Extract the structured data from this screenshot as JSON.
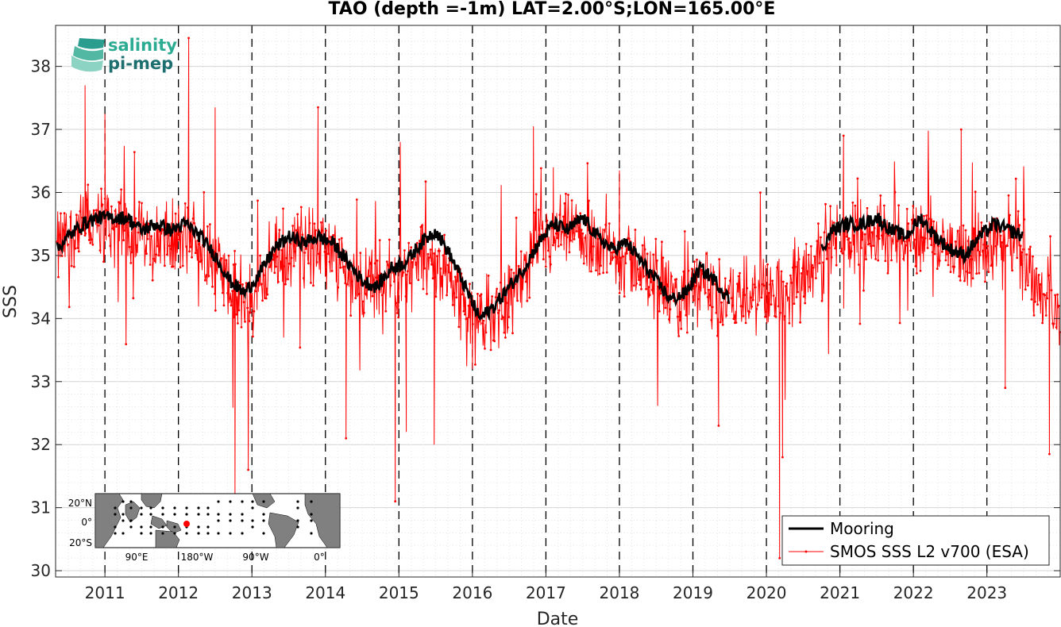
{
  "chart_data": {
    "type": "line",
    "title": "TAO (depth =-1m) LAT=2.00°S;LON=165.00°E",
    "xlabel": "Date",
    "ylabel": "SSS",
    "x_range": [
      "2010-05-01",
      "2023-12-31"
    ],
    "ylim": [
      29.9,
      38.65
    ],
    "x_ticks": [
      "2011",
      "2012",
      "2013",
      "2014",
      "2015",
      "2016",
      "2017",
      "2018",
      "2019",
      "2020",
      "2021",
      "2022",
      "2023"
    ],
    "y_ticks": [
      30,
      31,
      32,
      33,
      34,
      35,
      36,
      37,
      38
    ],
    "grid": "minor dotted",
    "year_separators": "dashed vertical lines at each January 1",
    "legend_position": "bottom-right",
    "series": [
      {
        "name": "Mooring",
        "color": "#000000",
        "style": "thick line",
        "segments": [
          [
            [
              2010.35,
              35.1
            ],
            [
              2010.5,
              35.3
            ],
            [
              2010.7,
              35.5
            ],
            [
              2010.9,
              35.6
            ],
            [
              2011.1,
              35.6
            ],
            [
              2011.3,
              35.6
            ],
            [
              2011.5,
              35.4
            ],
            [
              2011.7,
              35.5
            ],
            [
              2011.9,
              35.4
            ],
            [
              2012.1,
              35.5
            ],
            [
              2012.3,
              35.3
            ],
            [
              2012.5,
              35.0
            ],
            [
              2012.7,
              34.6
            ],
            [
              2012.9,
              34.4
            ],
            [
              2013.1,
              34.7
            ],
            [
              2013.3,
              35.1
            ],
            [
              2013.5,
              35.3
            ],
            [
              2013.7,
              35.2
            ],
            [
              2013.9,
              35.3
            ],
            [
              2014.1,
              35.2
            ],
            [
              2014.3,
              34.9
            ],
            [
              2014.5,
              34.6
            ],
            [
              2014.7,
              34.5
            ],
            [
              2014.9,
              34.8
            ],
            [
              2015.1,
              34.9
            ],
            [
              2015.3,
              35.2
            ],
            [
              2015.5,
              35.4
            ],
            [
              2015.7,
              35.0
            ],
            [
              2015.9,
              34.5
            ],
            [
              2016.1,
              34.0
            ],
            [
              2016.3,
              34.2
            ],
            [
              2016.5,
              34.5
            ],
            [
              2016.7,
              34.8
            ],
            [
              2016.9,
              35.2
            ],
            [
              2017.1,
              35.5
            ],
            [
              2017.3,
              35.4
            ],
            [
              2017.5,
              35.6
            ],
            [
              2017.7,
              35.3
            ],
            [
              2017.9,
              35.1
            ],
            [
              2018.1,
              35.2
            ],
            [
              2018.3,
              34.9
            ],
            [
              2018.5,
              34.6
            ],
            [
              2018.7,
              34.3
            ],
            [
              2018.9,
              34.4
            ],
            [
              2019.1,
              34.8
            ],
            [
              2019.3,
              34.6
            ],
            [
              2019.5,
              34.3
            ]
          ],
          [
            [
              2020.75,
              35.1
            ],
            [
              2020.9,
              35.4
            ],
            [
              2021.1,
              35.5
            ],
            [
              2021.3,
              35.5
            ],
            [
              2021.5,
              35.6
            ],
            [
              2021.7,
              35.4
            ],
            [
              2021.9,
              35.3
            ],
            [
              2022.1,
              35.6
            ],
            [
              2022.3,
              35.3
            ],
            [
              2022.5,
              35.1
            ],
            [
              2022.7,
              35.0
            ],
            [
              2022.9,
              35.3
            ],
            [
              2023.1,
              35.5
            ],
            [
              2023.3,
              35.4
            ],
            [
              2023.5,
              35.3
            ]
          ]
        ]
      },
      {
        "name": "SMOS SSS L2 v700 (ESA)",
        "color": "#ff0000",
        "style": "thin line with dot markers",
        "baseline": [
          [
            2010.35,
            35.1
          ],
          [
            2010.6,
            35.4
          ],
          [
            2010.9,
            35.5
          ],
          [
            2011.2,
            35.5
          ],
          [
            2011.6,
            35.3
          ],
          [
            2011.9,
            35.2
          ],
          [
            2012.2,
            35.3
          ],
          [
            2012.5,
            34.9
          ],
          [
            2012.8,
            34.3
          ],
          [
            2013.0,
            34.3
          ],
          [
            2013.3,
            35.0
          ],
          [
            2013.7,
            35.2
          ],
          [
            2014.0,
            35.1
          ],
          [
            2014.3,
            34.7
          ],
          [
            2014.7,
            34.5
          ],
          [
            2015.0,
            34.7
          ],
          [
            2015.4,
            35.0
          ],
          [
            2015.7,
            34.7
          ],
          [
            2016.0,
            34.0
          ],
          [
            2016.3,
            34.1
          ],
          [
            2016.6,
            34.5
          ],
          [
            2016.9,
            35.1
          ],
          [
            2017.2,
            35.3
          ],
          [
            2017.6,
            35.3
          ],
          [
            2017.9,
            35.0
          ],
          [
            2018.2,
            34.9
          ],
          [
            2018.5,
            34.5
          ],
          [
            2018.8,
            34.2
          ],
          [
            2019.1,
            34.5
          ],
          [
            2019.4,
            34.3
          ],
          [
            2019.8,
            34.3
          ],
          [
            2020.1,
            34.4
          ],
          [
            2020.4,
            34.6
          ],
          [
            2020.7,
            35.0
          ],
          [
            2021.0,
            35.3
          ],
          [
            2021.4,
            35.4
          ],
          [
            2021.8,
            35.3
          ],
          [
            2022.2,
            35.3
          ],
          [
            2022.6,
            35.0
          ],
          [
            2023.0,
            35.2
          ],
          [
            2023.4,
            35.2
          ],
          [
            2023.7,
            34.5
          ],
          [
            2024.0,
            34.0
          ]
        ],
        "noise_amplitude": 0.55,
        "extremes": [
          [
            2010.73,
            37.7
          ],
          [
            2011.0,
            37.25
          ],
          [
            2012.14,
            38.45
          ],
          [
            2012.5,
            37.35
          ],
          [
            2012.77,
            31.2
          ],
          [
            2012.95,
            31.6
          ],
          [
            2013.9,
            37.35
          ],
          [
            2014.28,
            32.1
          ],
          [
            2014.95,
            31.1
          ],
          [
            2015.1,
            32.2
          ],
          [
            2015.48,
            32.0
          ],
          [
            2016.83,
            37.05
          ],
          [
            2017.1,
            36.4
          ],
          [
            2020.18,
            30.2
          ],
          [
            2020.22,
            31.8
          ],
          [
            2021.05,
            36.9
          ],
          [
            2022.65,
            37.0
          ],
          [
            2023.25,
            32.9
          ],
          [
            2023.85,
            31.85
          ],
          [
            2016.0,
            33.2
          ],
          [
            2019.35,
            32.3
          ],
          [
            2018.0,
            36.35
          ]
        ]
      }
    ]
  },
  "logo": {
    "line1": "salinity",
    "line2": "pi-mep",
    "color1": "#2bab92",
    "color2": "#1d6e6e"
  },
  "inset_map": {
    "lat_labels": [
      "20°N",
      "0°",
      "20°S"
    ],
    "lon_labels": [
      "90°E",
      "180°W",
      "90°W",
      "0°"
    ],
    "land_color": "#808080",
    "marker_color": "#ff0000"
  },
  "colors": {
    "axes": "#262626",
    "grid": "#d9d9d9",
    "separator": "#000000"
  }
}
